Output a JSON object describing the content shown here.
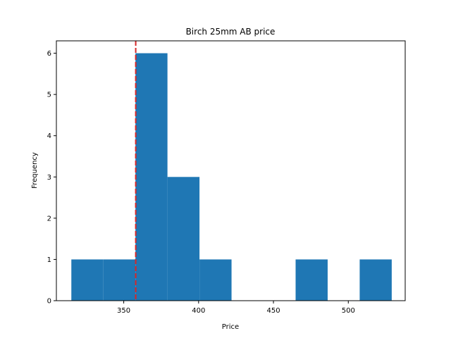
{
  "chart_data": {
    "type": "bar",
    "title": "Birch 25mm AB price",
    "xlabel": "Price",
    "ylabel": "Frequency",
    "xlim": [
      305,
      538
    ],
    "ylim": [
      0,
      6.3
    ],
    "xticks": [
      350,
      400,
      450,
      500
    ],
    "yticks": [
      0,
      1,
      2,
      3,
      4,
      5,
      6
    ],
    "bins": [
      {
        "x0": 315,
        "x1": 336.4,
        "count": 1
      },
      {
        "x0": 336.4,
        "x1": 357.8,
        "count": 1
      },
      {
        "x0": 357.8,
        "x1": 379.2,
        "count": 6
      },
      {
        "x0": 379.2,
        "x1": 400.6,
        "count": 3
      },
      {
        "x0": 400.6,
        "x1": 422,
        "count": 1
      },
      {
        "x0": 422,
        "x1": 443.4,
        "count": 0
      },
      {
        "x0": 443.4,
        "x1": 464.8,
        "count": 0
      },
      {
        "x0": 464.8,
        "x1": 486.2,
        "count": 1
      },
      {
        "x0": 486.2,
        "x1": 507.6,
        "count": 0
      },
      {
        "x0": 507.6,
        "x1": 529,
        "count": 1
      }
    ],
    "reference_line": {
      "x": 358,
      "color": "#d62728",
      "style": "dashed"
    },
    "bar_color": "#1f77b4",
    "grid": false
  }
}
